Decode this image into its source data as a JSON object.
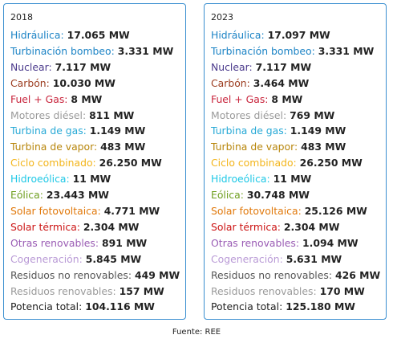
{
  "panels": [
    {
      "year": "2018",
      "rows": [
        {
          "label": "Hidráulica",
          "value": "17.065 MW",
          "color": "#1b83c5"
        },
        {
          "label": "Turbinación bombeo",
          "value": "3.331 MW",
          "color": "#1b83c5"
        },
        {
          "label": "Nuclear",
          "value": "7.117 MW",
          "color": "#4b3a8c"
        },
        {
          "label": "Carbón",
          "value": "10.030 MW",
          "color": "#9b3b1e"
        },
        {
          "label": "Fuel + Gas",
          "value": "8 MW",
          "color": "#c8233b"
        },
        {
          "label": "Motores diésel",
          "value": "811 MW",
          "color": "#9a9a9a"
        },
        {
          "label": "Turbina de gas",
          "value": "1.149 MW",
          "color": "#27a9d6"
        },
        {
          "label": "Turbina de vapor",
          "value": "483 MW",
          "color": "#b8860b"
        },
        {
          "label": "Ciclo combinado",
          "value": "26.250 MW",
          "color": "#f3b51b"
        },
        {
          "label": "Hidroeólica",
          "value": "11 MW",
          "color": "#1ec8e6"
        },
        {
          "label": "Eólica",
          "value": "23.443 MW",
          "color": "#6e9e1e"
        },
        {
          "label": "Solar fotovoltaica",
          "value": "4.771 MW",
          "color": "#e1780a"
        },
        {
          "label": "Solar térmica",
          "value": "2.304 MW",
          "color": "#cc1414"
        },
        {
          "label": "Otras renovables",
          "value": "891 MW",
          "color": "#9a5cb4"
        },
        {
          "label": "Cogeneración",
          "value": "5.845 MW",
          "color": "#b99ad6"
        },
        {
          "label": "Residuos no renovables",
          "value": "449 MW",
          "color": "#555555"
        },
        {
          "label": "Residuos renovables",
          "value": "157 MW",
          "color": "#9a9a9a"
        },
        {
          "label": "Potencia total",
          "value": "104.116 MW",
          "color": "#222222"
        }
      ]
    },
    {
      "year": "2023",
      "rows": [
        {
          "label": "Hidráulica",
          "value": "17.097 MW",
          "color": "#1b83c5"
        },
        {
          "label": "Turbinación bombeo",
          "value": "3.331 MW",
          "color": "#1b83c5"
        },
        {
          "label": "Nuclear",
          "value": "7.117 MW",
          "color": "#4b3a8c"
        },
        {
          "label": "Carbón",
          "value": "3.464 MW",
          "color": "#9b3b1e"
        },
        {
          "label": "Fuel + Gas",
          "value": "8 MW",
          "color": "#c8233b"
        },
        {
          "label": "Motores diésel",
          "value": "769 MW",
          "color": "#9a9a9a"
        },
        {
          "label": "Turbina de gas",
          "value": "1.149 MW",
          "color": "#27a9d6"
        },
        {
          "label": "Turbina de vapor",
          "value": "483 MW",
          "color": "#b8860b"
        },
        {
          "label": "Ciclo combinado",
          "value": "26.250 MW",
          "color": "#f3b51b"
        },
        {
          "label": "Hidroeólica",
          "value": "11 MW",
          "color": "#1ec8e6"
        },
        {
          "label": "Eólica",
          "value": "30.748 MW",
          "color": "#6e9e1e"
        },
        {
          "label": "Solar fotovoltaica",
          "value": "25.126 MW",
          "color": "#e1780a"
        },
        {
          "label": "Solar térmica",
          "value": "2.304 MW",
          "color": "#cc1414"
        },
        {
          "label": "Otras renovables",
          "value": "1.094 MW",
          "color": "#9a5cb4"
        },
        {
          "label": "Cogeneración",
          "value": "5.631 MW",
          "color": "#b99ad6"
        },
        {
          "label": "Residuos no renovables",
          "value": "426 MW",
          "color": "#555555"
        },
        {
          "label": "Residuos renovables",
          "value": "170 MW",
          "color": "#9a9a9a"
        },
        {
          "label": "Potencia total",
          "value": "125.180 MW",
          "color": "#222222"
        }
      ]
    }
  ],
  "footer": "Fuente: REE"
}
